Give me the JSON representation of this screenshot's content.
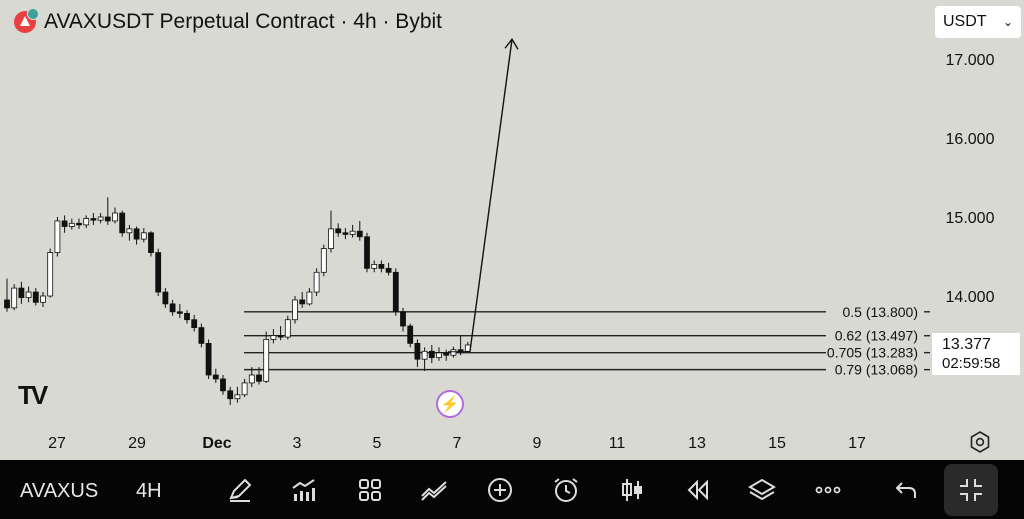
{
  "header": {
    "title": "AVAXUSDT Perpetual Contract · 4h · Bybit",
    "currency": "USDT"
  },
  "price_label": {
    "price": "13.377",
    "countdown": "02:59:58"
  },
  "toolbar": {
    "symbol": "AVAXUS",
    "interval": "4H"
  },
  "watermark": "TV",
  "chart_data": {
    "type": "candlestick",
    "title": "AVAXUSDT Perpetual Contract · 4h · Bybit",
    "x_ticks": [
      "27",
      "29",
      "Dec",
      "3",
      "5",
      "7",
      "9",
      "11",
      "13",
      "15",
      "17"
    ],
    "y_ticks": [
      "17.000",
      "16.000",
      "15.000",
      "14.000"
    ],
    "ylim": [
      12.4,
      17.6
    ],
    "grid": false,
    "candles": [
      [
        13.95,
        13.85,
        14.22,
        13.8
      ],
      [
        13.85,
        14.1,
        14.15,
        13.82
      ],
      [
        14.1,
        13.98,
        14.18,
        13.9
      ],
      [
        13.98,
        14.05,
        14.12,
        13.92
      ],
      [
        14.05,
        13.92,
        14.1,
        13.88
      ],
      [
        13.92,
        14.0,
        14.05,
        13.86
      ],
      [
        14.0,
        14.55,
        14.6,
        13.98
      ],
      [
        14.55,
        14.95,
        15.0,
        14.5
      ],
      [
        14.95,
        14.88,
        15.02,
        14.8
      ],
      [
        14.88,
        14.92,
        14.98,
        14.84
      ],
      [
        14.92,
        14.9,
        14.98,
        14.85
      ],
      [
        14.9,
        14.98,
        15.02,
        14.86
      ],
      [
        14.98,
        14.96,
        15.05,
        14.9
      ],
      [
        14.96,
        15.0,
        15.05,
        14.92
      ],
      [
        15.0,
        14.95,
        15.25,
        14.9
      ],
      [
        14.95,
        15.05,
        15.12,
        14.92
      ],
      [
        15.05,
        14.8,
        15.08,
        14.75
      ],
      [
        14.8,
        14.85,
        14.9,
        14.7
      ],
      [
        14.85,
        14.72,
        14.88,
        14.65
      ],
      [
        14.72,
        14.8,
        14.86,
        14.68
      ],
      [
        14.8,
        14.55,
        14.82,
        14.5
      ],
      [
        14.55,
        14.05,
        14.6,
        14.0
      ],
      [
        14.05,
        13.9,
        14.1,
        13.85
      ],
      [
        13.9,
        13.8,
        13.95,
        13.75
      ],
      [
        13.8,
        13.78,
        13.9,
        13.72
      ],
      [
        13.78,
        13.7,
        13.82,
        13.65
      ],
      [
        13.7,
        13.6,
        13.76,
        13.55
      ],
      [
        13.6,
        13.4,
        13.65,
        13.35
      ],
      [
        13.4,
        13.0,
        13.45,
        12.95
      ],
      [
        13.0,
        12.95,
        13.08,
        12.9
      ],
      [
        12.95,
        12.8,
        13.0,
        12.75
      ],
      [
        12.8,
        12.7,
        12.85,
        12.62
      ],
      [
        12.7,
        12.75,
        12.85,
        12.65
      ],
      [
        12.75,
        12.9,
        12.95,
        12.72
      ],
      [
        12.9,
        13.0,
        13.1,
        12.85
      ],
      [
        13.0,
        12.92,
        13.1,
        12.88
      ],
      [
        12.92,
        13.45,
        13.55,
        12.9
      ],
      [
        13.45,
        13.5,
        13.58,
        13.4
      ],
      [
        13.5,
        13.48,
        13.62,
        13.44
      ],
      [
        13.48,
        13.7,
        13.75,
        13.45
      ],
      [
        13.7,
        13.95,
        14.0,
        13.65
      ],
      [
        13.95,
        13.9,
        14.05,
        13.85
      ],
      [
        13.9,
        14.05,
        14.1,
        13.88
      ],
      [
        14.05,
        14.3,
        14.35,
        14.0
      ],
      [
        14.3,
        14.6,
        14.65,
        14.25
      ],
      [
        14.6,
        14.85,
        15.08,
        14.55
      ],
      [
        14.85,
        14.8,
        14.92,
        14.75
      ],
      [
        14.8,
        14.78,
        14.86,
        14.72
      ],
      [
        14.78,
        14.82,
        14.9,
        14.74
      ],
      [
        14.82,
        14.75,
        14.95,
        14.7
      ],
      [
        14.75,
        14.35,
        14.8,
        14.3
      ],
      [
        14.35,
        14.4,
        14.45,
        14.3
      ],
      [
        14.4,
        14.35,
        14.45,
        14.3
      ],
      [
        14.35,
        14.3,
        14.42,
        14.26
      ],
      [
        14.3,
        13.8,
        14.35,
        13.75
      ],
      [
        13.8,
        13.62,
        13.85,
        13.55
      ],
      [
        13.62,
        13.4,
        13.65,
        13.35
      ],
      [
        13.4,
        13.2,
        13.45,
        13.1
      ],
      [
        13.2,
        13.3,
        13.35,
        13.05
      ],
      [
        13.3,
        13.22,
        13.38,
        13.15
      ],
      [
        13.22,
        13.28,
        13.35,
        13.18
      ],
      [
        13.28,
        13.25,
        13.32,
        13.18
      ],
      [
        13.25,
        13.32,
        13.36,
        13.22
      ],
      [
        13.32,
        13.3,
        13.5,
        13.25
      ],
      [
        13.3,
        13.38,
        13.42,
        13.28
      ]
    ],
    "fib_levels": [
      {
        "label": "0.5 (13.800)",
        "value": 13.8
      },
      {
        "label": "0.62 (13.497)",
        "value": 13.497
      },
      {
        "label": "0.705 (13.283)",
        "value": 13.283
      },
      {
        "label": "0.79 (13.068)",
        "value": 13.068
      }
    ],
    "projection_arrow": {
      "from_value": 13.3,
      "to_value": 17.25
    }
  }
}
